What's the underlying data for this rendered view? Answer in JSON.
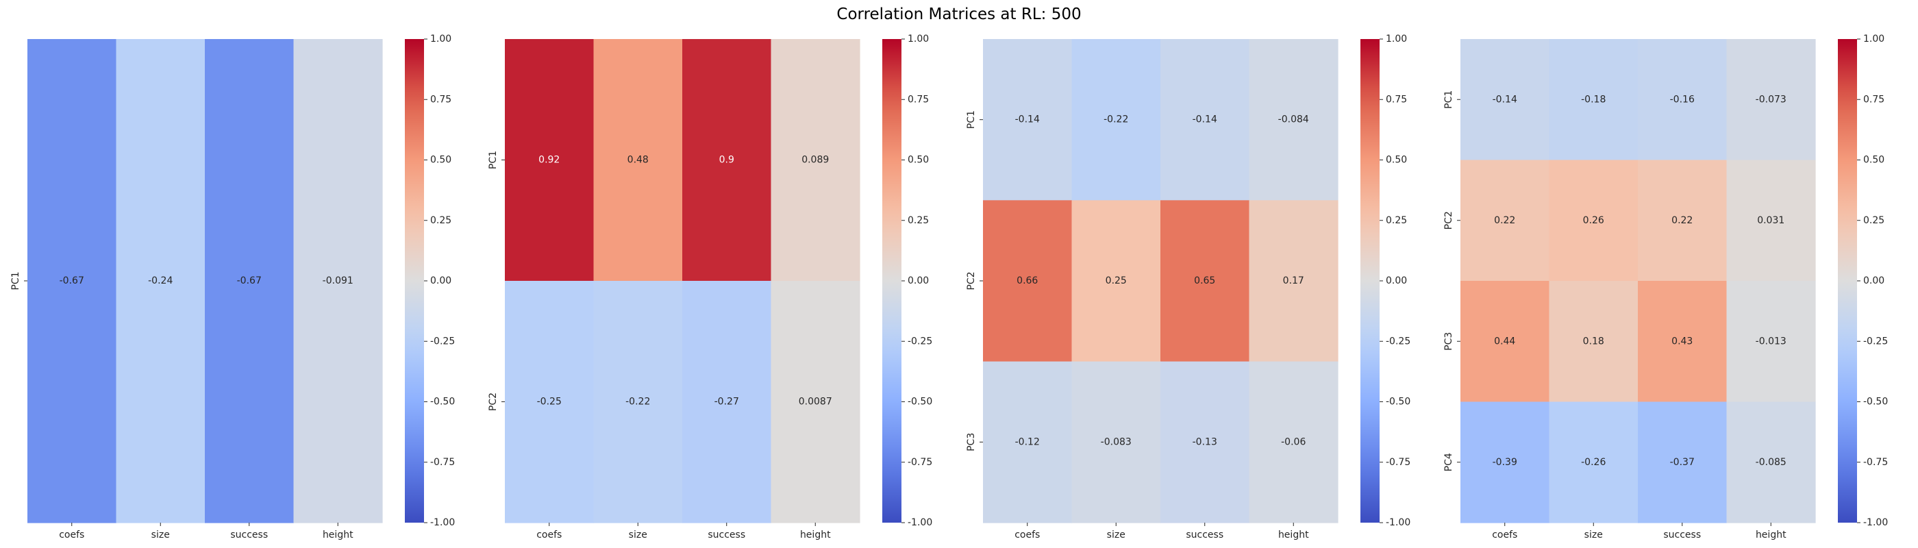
{
  "figure": {
    "title": "Correlation Matrices at RL: 500"
  },
  "colors": {
    "cmap": "coolwarm",
    "light_text": "#ffffff",
    "dark_text": "#262626",
    "axis_text": "#262626"
  },
  "chart_data": [
    {
      "type": "heatmap",
      "columns": [
        "coefs",
        "size",
        "success",
        "height"
      ],
      "rows": [
        "PC1"
      ],
      "values": [
        [
          -0.67,
          -0.24,
          -0.67,
          -0.091
        ]
      ],
      "labels": [
        [
          "-0.67",
          "-0.24",
          "-0.67",
          "-0.091"
        ]
      ],
      "vmin": -1,
      "vmax": 1,
      "colorbar_ticks": [
        "1.00",
        "0.75",
        "0.50",
        "0.25",
        "0.00",
        "-0.25",
        "-0.50",
        "-0.75",
        "-1.00"
      ]
    },
    {
      "type": "heatmap",
      "columns": [
        "coefs",
        "size",
        "success",
        "height"
      ],
      "rows": [
        "PC1",
        "PC2"
      ],
      "values": [
        [
          0.92,
          0.48,
          0.9,
          0.089
        ],
        [
          -0.25,
          -0.22,
          -0.27,
          0.0087
        ]
      ],
      "labels": [
        [
          "0.92",
          "0.48",
          "0.9",
          "0.089"
        ],
        [
          "-0.25",
          "-0.22",
          "-0.27",
          "0.0087"
        ]
      ],
      "vmin": -1,
      "vmax": 1,
      "colorbar_ticks": [
        "1.00",
        "0.75",
        "0.50",
        "0.25",
        "0.00",
        "-0.25",
        "-0.50",
        "-0.75",
        "-1.00"
      ]
    },
    {
      "type": "heatmap",
      "columns": [
        "coefs",
        "size",
        "success",
        "height"
      ],
      "rows": [
        "PC1",
        "PC2",
        "PC3"
      ],
      "values": [
        [
          -0.14,
          -0.22,
          -0.14,
          -0.084
        ],
        [
          0.66,
          0.25,
          0.65,
          0.17
        ],
        [
          -0.12,
          -0.083,
          -0.13,
          -0.06
        ]
      ],
      "labels": [
        [
          "-0.14",
          "-0.22",
          "-0.14",
          "-0.084"
        ],
        [
          "0.66",
          "0.25",
          "0.65",
          "0.17"
        ],
        [
          "-0.12",
          "-0.083",
          "-0.13",
          "-0.06"
        ]
      ],
      "vmin": -1,
      "vmax": 1,
      "colorbar_ticks": [
        "1.00",
        "0.75",
        "0.50",
        "0.25",
        "0.00",
        "-0.25",
        "-0.50",
        "-0.75",
        "-1.00"
      ]
    },
    {
      "type": "heatmap",
      "columns": [
        "coefs",
        "size",
        "success",
        "height"
      ],
      "rows": [
        "PC1",
        "PC2",
        "PC3",
        "PC4"
      ],
      "values": [
        [
          -0.14,
          -0.18,
          -0.16,
          -0.073
        ],
        [
          0.22,
          0.26,
          0.22,
          0.031
        ],
        [
          0.44,
          0.18,
          0.43,
          -0.013
        ],
        [
          -0.39,
          -0.26,
          -0.37,
          -0.085
        ]
      ],
      "labels": [
        [
          "-0.14",
          "-0.18",
          "-0.16",
          "-0.073"
        ],
        [
          "0.22",
          "0.26",
          "0.22",
          "0.031"
        ],
        [
          "0.44",
          "0.18",
          "0.43",
          "-0.013"
        ],
        [
          "-0.39",
          "-0.26",
          "-0.37",
          "-0.085"
        ]
      ],
      "vmin": -1,
      "vmax": 1,
      "colorbar_ticks": [
        "1.00",
        "0.75",
        "0.50",
        "0.25",
        "0.00",
        "-0.25",
        "-0.50",
        "-0.75",
        "-1.00"
      ]
    }
  ]
}
